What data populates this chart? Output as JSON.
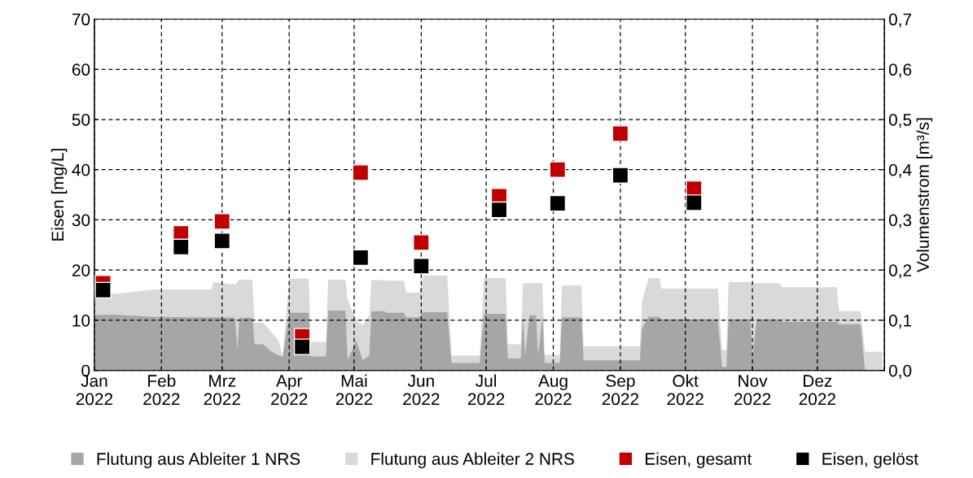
{
  "chart_data": {
    "type": "scatter",
    "ylabel": "Eisen [mg/L]",
    "y2label": "Volumenstrom [m³/s]",
    "xlim": [
      "2022-01-01",
      "2023-01-01"
    ],
    "xticks": [
      {
        "value": "2022-01-01",
        "label": "Jan\n2022"
      },
      {
        "value": "2022-02-01",
        "label": "Feb\n2022"
      },
      {
        "value": "2022-03-01",
        "label": "Mrz\n2022"
      },
      {
        "value": "2022-04-01",
        "label": "Apr\n2022"
      },
      {
        "value": "2022-05-01",
        "label": "Mai\n2022"
      },
      {
        "value": "2022-06-01",
        "label": "Jun\n2022"
      },
      {
        "value": "2022-07-01",
        "label": "Jul\n2022"
      },
      {
        "value": "2022-08-01",
        "label": "Aug\n2022"
      },
      {
        "value": "2022-09-01",
        "label": "Sep\n2022"
      },
      {
        "value": "2022-10-01",
        "label": "Okt\n2022"
      },
      {
        "value": "2022-11-01",
        "label": "Nov\n2022"
      },
      {
        "value": "2022-12-01",
        "label": "Dez\n2022"
      },
      {
        "value": "2023-01-01",
        "label": null
      }
    ],
    "ylim": [
      0,
      70
    ],
    "yticks": [
      0,
      10,
      20,
      30,
      40,
      50,
      60,
      70
    ],
    "y2lim": [
      0,
      0.7
    ],
    "y2ticks": [
      {
        "value": 0,
        "label": "0,0"
      },
      {
        "value": 0.1,
        "label": "0,1"
      },
      {
        "value": 0.2,
        "label": "0,2"
      },
      {
        "value": 0.3,
        "label": "0,3"
      },
      {
        "value": 0.4,
        "label": "0,4"
      },
      {
        "value": 0.5,
        "label": "0,5"
      },
      {
        "value": 0.6,
        "label": "0,6"
      },
      {
        "value": 0.7,
        "label": "0,7"
      }
    ],
    "grid": true,
    "line_style": "dashed",
    "legend": "bottom",
    "series": [
      {
        "name": "Flutung aus Ableiter 1 NRS",
        "type": "area",
        "axis": "y2",
        "color": "#a6a6a6",
        "x": [
          "2022-01-01",
          "2022-01-11",
          "2022-01-28",
          "2022-02-16",
          "2022-02-24",
          "2022-02-25",
          "2022-03-07",
          "2022-03-08",
          "2022-03-09",
          "2022-03-15",
          "2022-03-16",
          "2022-03-20",
          "2022-03-23",
          "2022-03-27",
          "2022-03-29",
          "2022-04-01",
          "2022-04-10",
          "2022-04-11",
          "2022-04-18",
          "2022-04-19",
          "2022-04-27",
          "2022-04-28",
          "2022-05-02",
          "2022-05-05",
          "2022-05-08",
          "2022-05-09",
          "2022-05-15",
          "2022-05-16",
          "2022-05-24",
          "2022-05-25",
          "2022-05-31",
          "2022-06-02",
          "2022-06-13",
          "2022-06-15",
          "2022-06-28",
          "2022-06-30",
          "2022-07-10",
          "2022-07-11",
          "2022-07-17",
          "2022-07-18",
          "2022-07-19",
          "2022-07-21",
          "2022-07-24",
          "2022-07-25",
          "2022-07-27",
          "2022-07-28",
          "2022-08-04",
          "2022-08-05",
          "2022-08-14",
          "2022-08-15",
          "2022-09-10",
          "2022-09-11",
          "2022-09-14",
          "2022-09-19",
          "2022-09-20",
          "2022-10-16",
          "2022-10-18",
          "2022-10-20",
          "2022-10-21",
          "2022-10-31",
          "2022-11-01",
          "2022-11-03",
          "2022-11-13",
          "2022-11-15",
          "2022-12-10",
          "2022-12-11",
          "2022-12-21",
          "2022-12-23",
          "2022-12-31"
        ],
        "values": [
          0.111,
          0.111,
          0.107,
          0.106,
          0.106,
          0.106,
          0.105,
          0.041,
          0.105,
          0.105,
          0.052,
          0.052,
          0.04,
          0.03,
          0.028,
          0.115,
          0.115,
          0.028,
          0.028,
          0.119,
          0.119,
          0.02,
          0.06,
          0.02,
          0.03,
          0.118,
          0.118,
          0.115,
          0.115,
          0.106,
          0.106,
          0.116,
          0.116,
          0.015,
          0.015,
          0.113,
          0.113,
          0.024,
          0.024,
          0.11,
          0.03,
          0.11,
          0.11,
          0.03,
          0.11,
          0.015,
          0.015,
          0.106,
          0.106,
          0.02,
          0.02,
          0.084,
          0.107,
          0.107,
          0.102,
          0.102,
          0.007,
          0.007,
          0.102,
          0.102,
          0.024,
          0.102,
          0.102,
          0.097,
          0.097,
          0.092,
          0.092,
          0,
          0
        ]
      },
      {
        "name": "Flutung aus Ableiter 2 NRS",
        "type": "area",
        "axis": "y2",
        "color": "#d9d9d9",
        "x": [
          "2022-01-01",
          "2022-01-11",
          "2022-01-28",
          "2022-02-16",
          "2022-02-24",
          "2022-02-25",
          "2022-03-07",
          "2022-03-09",
          "2022-03-15",
          "2022-03-16",
          "2022-03-20",
          "2022-03-23",
          "2022-03-27",
          "2022-03-29",
          "2022-04-01",
          "2022-04-10",
          "2022-04-11",
          "2022-04-18",
          "2022-04-19",
          "2022-04-27",
          "2022-04-28",
          "2022-05-02",
          "2022-05-05",
          "2022-05-08",
          "2022-05-09",
          "2022-05-15",
          "2022-05-16",
          "2022-05-24",
          "2022-05-25",
          "2022-05-31",
          "2022-06-02",
          "2022-06-13",
          "2022-06-15",
          "2022-06-28",
          "2022-06-30",
          "2022-07-10",
          "2022-07-11",
          "2022-07-17",
          "2022-07-18",
          "2022-07-21",
          "2022-07-24",
          "2022-07-27",
          "2022-07-28",
          "2022-08-04",
          "2022-08-05",
          "2022-08-14",
          "2022-08-15",
          "2022-09-10",
          "2022-09-11",
          "2022-09-14",
          "2022-09-19",
          "2022-09-20",
          "2022-10-16",
          "2022-10-18",
          "2022-10-20",
          "2022-10-21",
          "2022-10-31",
          "2022-11-03",
          "2022-11-13",
          "2022-11-15",
          "2022-12-10",
          "2022-12-11",
          "2022-12-21",
          "2022-12-23",
          "2022-12-31"
        ],
        "values": [
          0.151,
          0.153,
          0.161,
          0.161,
          0.161,
          0.176,
          0.171,
          0.181,
          0.181,
          0.095,
          0.095,
          0.08,
          0.06,
          0.028,
          0.183,
          0.183,
          0.057,
          0.057,
          0.181,
          0.181,
          0.14,
          0.1,
          0.09,
          0.11,
          0.18,
          0.18,
          0.179,
          0.179,
          0.155,
          0.155,
          0.189,
          0.189,
          0.03,
          0.03,
          0.184,
          0.184,
          0.052,
          0.052,
          0.174,
          0.174,
          0.174,
          0.174,
          0.031,
          0.031,
          0.169,
          0.169,
          0.048,
          0.048,
          0.137,
          0.184,
          0.184,
          0.163,
          0.163,
          0.041,
          0.041,
          0.176,
          0.176,
          0.174,
          0.174,
          0.166,
          0.166,
          0.118,
          0.118,
          0.037,
          0.037
        ]
      },
      {
        "name": "Eisen, gesamt",
        "marker": "square",
        "color": "#c00000",
        "x": [
          "2022-01-05",
          "2022-02-10",
          "2022-03-01",
          "2022-04-07",
          "2022-05-04",
          "2022-06-01",
          "2022-07-07",
          "2022-08-03",
          "2022-09-01",
          "2022-10-05"
        ],
        "values": [
          17.4,
          27.3,
          29.7,
          6.8,
          39.4,
          25.5,
          34.7,
          40,
          47.2,
          36.2
        ]
      },
      {
        "name": "Eisen, gelöst",
        "marker": "square",
        "color": "#000000",
        "x": [
          "2022-01-05",
          "2022-02-10",
          "2022-03-01",
          "2022-04-07",
          "2022-05-04",
          "2022-06-01",
          "2022-07-07",
          "2022-08-03",
          "2022-09-01",
          "2022-10-05"
        ],
        "values": [
          16.0,
          24.6,
          25.8,
          4.7,
          22.5,
          20.8,
          32.0,
          33.3,
          38.9,
          33.4
        ]
      }
    ]
  }
}
